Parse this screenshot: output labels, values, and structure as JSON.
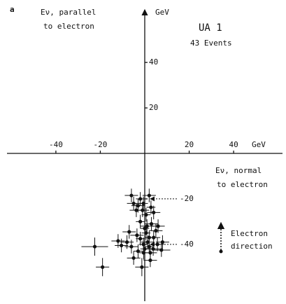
{
  "chart_data": {
    "type": "scatter",
    "panel": "a",
    "title": "UA 1",
    "subtitle": "43 Events",
    "y_label": [
      "Eν, parallel",
      "to electron"
    ],
    "y_unit": "GeV",
    "x_label": [
      "Eν, normal",
      "to electron"
    ],
    "x_unit": "GeV",
    "annotation": [
      "Electron",
      "direction"
    ],
    "xlim": [
      -62,
      62
    ],
    "ylim": [
      -65,
      65
    ],
    "xticks": [
      -40,
      -20,
      20,
      40
    ],
    "yticks": [
      -40,
      -20,
      20,
      40
    ],
    "color": "#111111",
    "series": [
      {
        "name": "Events",
        "x": [
          -6,
          -5,
          -3,
          -2,
          -1,
          2,
          4,
          0.6,
          1,
          3,
          -2,
          -7,
          -3.5,
          -10.5,
          -12,
          -22.5,
          -19,
          -5,
          -0.5,
          -0.6,
          1.3,
          4,
          5.7,
          7.5,
          2.5,
          -1.3,
          2.5,
          5,
          -3,
          0.6,
          -6,
          3.8,
          -2,
          2,
          6,
          -0.6,
          2.8,
          -3.8,
          0,
          8,
          -8,
          2,
          0
        ],
        "y": [
          -18.5,
          -22,
          -23,
          -20,
          -25,
          -18.5,
          -26,
          -27,
          -32,
          -31,
          -30,
          -34.5,
          -36,
          -40.5,
          -38.5,
          -41,
          -50,
          -46,
          -43.7,
          -40,
          -39,
          -37,
          -40,
          -42.5,
          -43.7,
          -50,
          -47,
          -34,
          -43,
          -35,
          -41,
          -42,
          -37.5,
          -37,
          -32,
          -22,
          -23.7,
          -25,
          -33,
          -39,
          -39,
          -41,
          -42
        ],
        "xerr": [
          3,
          3,
          3,
          2,
          3,
          3,
          3,
          2,
          3,
          3,
          2,
          3,
          3,
          3,
          3,
          6,
          3,
          3,
          2,
          2,
          3,
          3,
          3,
          4,
          3,
          3,
          3,
          3,
          2,
          2,
          3,
          3,
          2,
          2,
          3,
          2,
          2,
          3,
          2,
          3,
          3,
          2,
          2
        ],
        "yerr": [
          3,
          3,
          3,
          3,
          3,
          3,
          3,
          3,
          3,
          3,
          3,
          3,
          3,
          3,
          3,
          4,
          4,
          3,
          3,
          3,
          3,
          3,
          3,
          3,
          3,
          4,
          3,
          3,
          3,
          3,
          3,
          3,
          3,
          3,
          3,
          3,
          3,
          3,
          3,
          3,
          3,
          3,
          3
        ]
      }
    ]
  }
}
